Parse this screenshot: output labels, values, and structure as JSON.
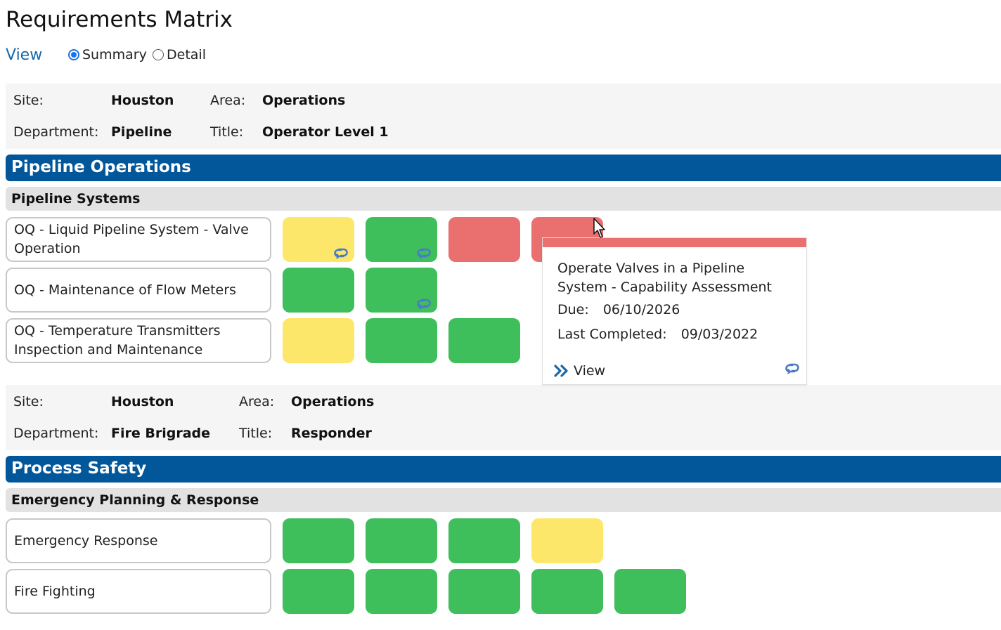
{
  "page": {
    "title": "Requirements Matrix"
  },
  "view": {
    "label": "View",
    "options": [
      {
        "label": "Summary",
        "selected": true
      },
      {
        "label": "Detail",
        "selected": false
      }
    ]
  },
  "info_labels": {
    "site": "Site:",
    "area": "Area:",
    "department": "Department:",
    "title": "Title:"
  },
  "blocks": [
    {
      "site": "Houston",
      "area": "Operations",
      "department": "Pipeline",
      "title": "Operator Level 1",
      "section": "Pipeline Operations",
      "group": "Pipeline Systems",
      "requirements": [
        {
          "name": "OQ - Liquid Pipeline System - Valve Operation",
          "tiles": [
            {
              "status": "yellow",
              "recurring": true
            },
            {
              "status": "green",
              "recurring": true
            },
            {
              "status": "red",
              "recurring": false
            },
            {
              "status": "red",
              "recurring": false
            }
          ]
        },
        {
          "name": "OQ - Maintenance of Flow Meters",
          "tiles": [
            {
              "status": "green",
              "recurring": false
            },
            {
              "status": "green",
              "recurring": true
            }
          ]
        },
        {
          "name": "OQ - Temperature Transmitters Inspection and Maintenance",
          "tiles": [
            {
              "status": "yellow",
              "recurring": false
            },
            {
              "status": "green",
              "recurring": false
            },
            {
              "status": "green",
              "recurring": false
            }
          ]
        }
      ]
    },
    {
      "site": "Houston",
      "area": "Operations",
      "department": "Fire Brigrade",
      "title": "Responder",
      "section": "Process Safety",
      "group": "Emergency Planning & Response",
      "requirements": [
        {
          "name": "Emergency Response",
          "tiles": [
            {
              "status": "green",
              "recurring": false
            },
            {
              "status": "green",
              "recurring": false
            },
            {
              "status": "green",
              "recurring": false
            },
            {
              "status": "yellow",
              "recurring": false
            }
          ]
        },
        {
          "name": "Fire Fighting",
          "tiles": [
            {
              "status": "green",
              "recurring": false
            },
            {
              "status": "green",
              "recurring": false
            },
            {
              "status": "green",
              "recurring": false
            },
            {
              "status": "green",
              "recurring": false
            },
            {
              "status": "green",
              "recurring": false
            }
          ]
        }
      ]
    }
  ],
  "popup": {
    "name": "Operate Valves in a Pipeline System - Capability Assessment",
    "due_label": "Due:",
    "due": "06/10/2026",
    "last_label": "Last Completed:",
    "last": "09/03/2022",
    "view_label": "View",
    "status_color": "#ea6f6f",
    "icons": [
      "double-chevron-right-icon",
      "recurring-icon"
    ]
  },
  "colors": {
    "brand": "#02569a",
    "yellow": "#fde76b",
    "green": "#3fbe5c",
    "red": "#ea6f6f",
    "accent": "#1769aa"
  }
}
